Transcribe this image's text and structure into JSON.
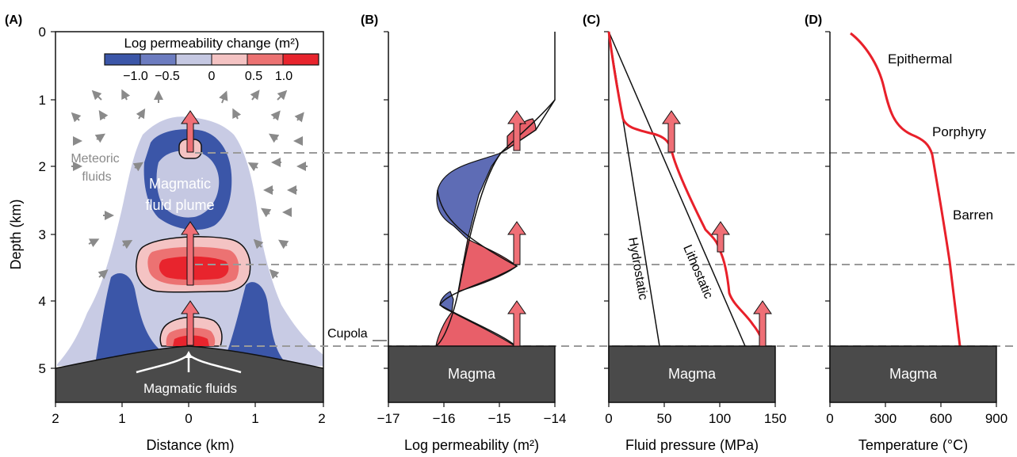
{
  "panels": {
    "a": {
      "letter": "(A)",
      "y_axis_label": "Depth (km)",
      "y_ticks": [
        "0",
        "1",
        "2",
        "3",
        "4",
        "5"
      ],
      "x_axis_label": "Distance (km)",
      "x_ticks": [
        "2",
        "1",
        "0",
        "1",
        "2"
      ],
      "colorbar_title": "Log permeability change (m²)",
      "colorbar_ticks": [
        "−1.0",
        "−0.5",
        "0",
        "0.5",
        "1.0"
      ],
      "colorbar_colors": [
        "#3b56a8",
        "#6c7cc0",
        "#c5c8e2",
        "#f4c3c3",
        "#ec7272",
        "#e8242d"
      ],
      "label_meteoric_1": "Meteoric",
      "label_meteoric_2": "fluids",
      "label_plume_1": "Magmatic",
      "label_plume_2": "fluid plume",
      "label_magmatic_fluids": "Magmatic fluids",
      "label_cupola": "Cupola"
    },
    "b": {
      "letter": "(B)",
      "x_axis_label": "Log permeability (m²)",
      "x_ticks": [
        "−17",
        "−16",
        "−15",
        "−14"
      ],
      "magma_label": "Magma"
    },
    "c": {
      "letter": "(C)",
      "x_axis_label": "Fluid pressure (MPa)",
      "x_ticks": [
        "0",
        "50",
        "100",
        "150"
      ],
      "label_hydrostatic": "Hydrostatic",
      "label_lithostatic": "Lithostatic",
      "magma_label": "Magma"
    },
    "d": {
      "letter": "(D)",
      "x_axis_label": "Temperature (°C)",
      "x_ticks": [
        "0",
        "300",
        "600",
        "900"
      ],
      "label_epithermal": "Epithermal",
      "label_porphyry": "Porphyry",
      "label_barren": "Barren",
      "magma_label": "Magma"
    }
  },
  "colors": {
    "red_curve": "#e8202a",
    "arrow_fill": "#ef6f76",
    "blue_fill": "#5e6cb5",
    "red_fill": "#e85f69",
    "magma": "#4a4a4a",
    "dashed": "#9a9a9a",
    "meteoric_arrows": "#8a8a8a"
  }
}
